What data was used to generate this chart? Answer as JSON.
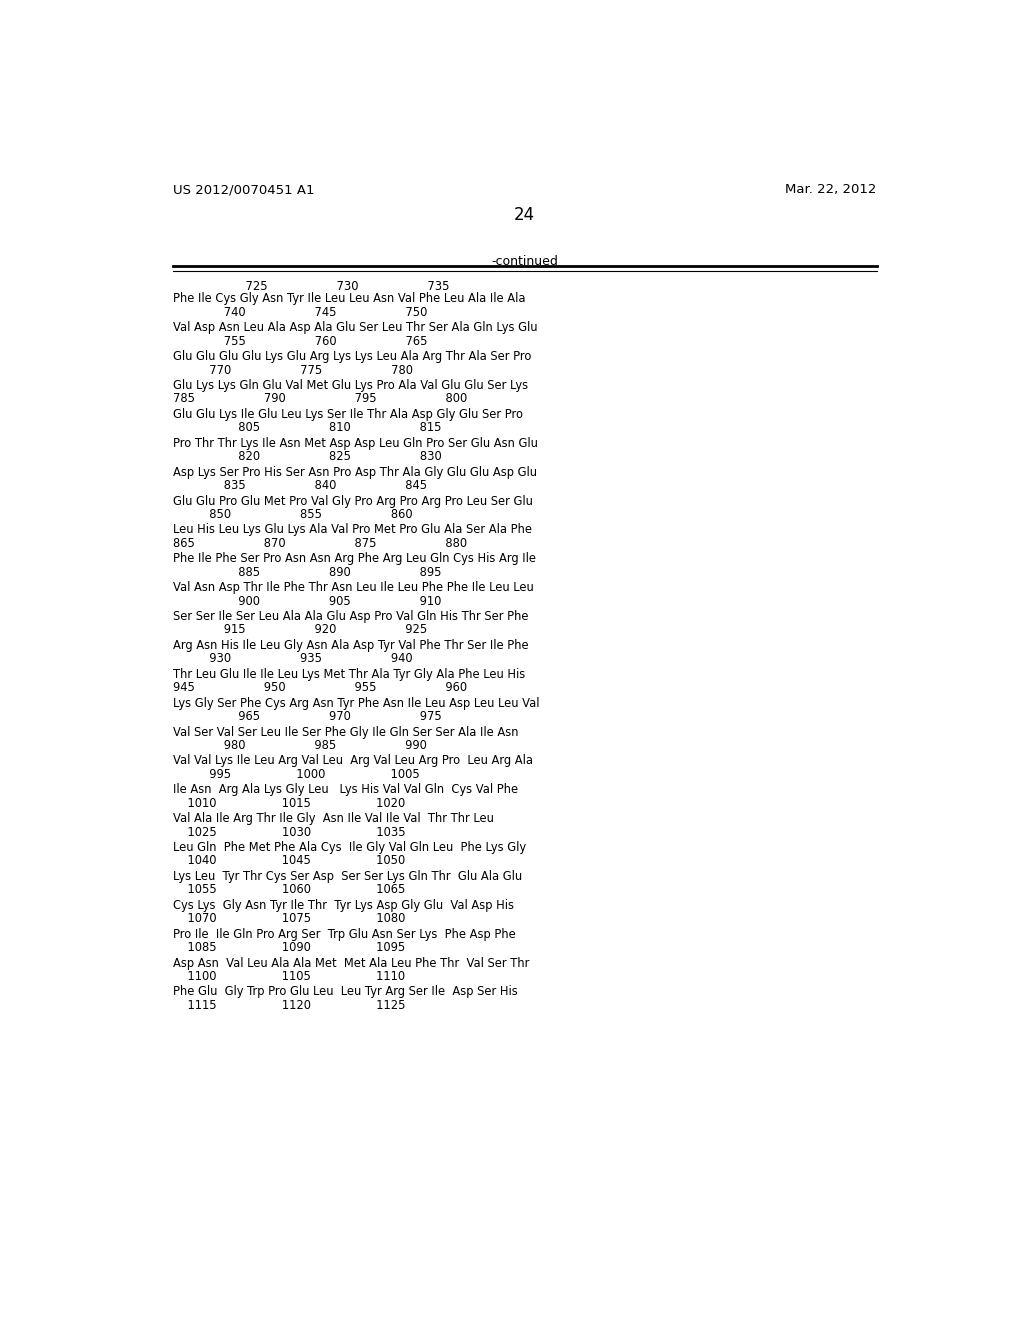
{
  "header_left": "US 2012/0070451 A1",
  "header_right": "Mar. 22, 2012",
  "page_number": "24",
  "continued_label": "-continued",
  "background_color": "#ffffff",
  "text_color": "#000000",
  "sequence_blocks": [
    {
      "aa": "Phe Ile Cys Gly Asn Tyr Ile Leu Leu Asn Val Phe Leu Ala Ile Ala",
      "num": "              740                   745                   750",
      "num_prefix": "                    725                   730                   735",
      "show_prefix": true
    },
    {
      "aa": "Val Asp Asn Leu Ala Asp Ala Glu Ser Leu Thr Ser Ala Gln Lys Glu",
      "num": "              755                   760                   765",
      "show_prefix": false
    },
    {
      "aa": "Glu Glu Glu Glu Lys Glu Arg Lys Lys Leu Ala Arg Thr Ala Ser Pro",
      "num": "          770                   775                   780",
      "show_prefix": false
    },
    {
      "aa": "Glu Lys Lys Gln Glu Val Met Glu Lys Pro Ala Val Glu Glu Ser Lys",
      "num": "785                   790                   795                   800",
      "show_prefix": false
    },
    {
      "aa": "Glu Glu Lys Ile Glu Leu Lys Ser Ile Thr Ala Asp Gly Glu Ser Pro",
      "num": "                  805                   810                   815",
      "show_prefix": false
    },
    {
      "aa": "Pro Thr Thr Lys Ile Asn Met Asp Asp Leu Gln Pro Ser Glu Asn Glu",
      "num": "                  820                   825                   830",
      "show_prefix": false
    },
    {
      "aa": "Asp Lys Ser Pro His Ser Asn Pro Asp Thr Ala Gly Glu Glu Asp Glu",
      "num": "              835                   840                   845",
      "show_prefix": false
    },
    {
      "aa": "Glu Glu Pro Glu Met Pro Val Gly Pro Arg Pro Arg Pro Leu Ser Glu",
      "num": "          850                   855                   860",
      "show_prefix": false
    },
    {
      "aa": "Leu His Leu Lys Glu Lys Ala Val Pro Met Pro Glu Ala Ser Ala Phe",
      "num": "865                   870                   875                   880",
      "show_prefix": false
    },
    {
      "aa": "Phe Ile Phe Ser Pro Asn Asn Arg Phe Arg Leu Gln Cys His Arg Ile",
      "num": "                  885                   890                   895",
      "show_prefix": false
    },
    {
      "aa": "Val Asn Asp Thr Ile Phe Thr Asn Leu Ile Leu Phe Phe Ile Leu Leu",
      "num": "                  900                   905                   910",
      "show_prefix": false
    },
    {
      "aa": "Ser Ser Ile Ser Leu Ala Ala Glu Asp Pro Val Gln His Thr Ser Phe",
      "num": "              915                   920                   925",
      "show_prefix": false
    },
    {
      "aa": "Arg Asn His Ile Leu Gly Asn Ala Asp Tyr Val Phe Thr Ser Ile Phe",
      "num": "          930                   935                   940",
      "show_prefix": false
    },
    {
      "aa": "Thr Leu Glu Ile Ile Leu Lys Met Thr Ala Tyr Gly Ala Phe Leu His",
      "num": "945                   950                   955                   960",
      "show_prefix": false
    },
    {
      "aa": "Lys Gly Ser Phe Cys Arg Asn Tyr Phe Asn Ile Leu Asp Leu Leu Val",
      "num": "                  965                   970                   975",
      "show_prefix": false
    },
    {
      "aa": "Val Ser Val Ser Leu Ile Ser Phe Gly Ile Gln Ser Ser Ala Ile Asn",
      "num": "              980                   985                   990",
      "show_prefix": false
    },
    {
      "aa": "Val Val Lys Ile Leu Arg Val Leu  Arg Val Leu Arg Pro  Leu Arg Ala",
      "num": "          995                  1000                  1005",
      "show_prefix": false
    },
    {
      "aa": "Ile Asn  Arg Ala Lys Gly Leu   Lys His Val Val Gln  Cys Val Phe",
      "num": "    1010                  1015                  1020",
      "show_prefix": false
    },
    {
      "aa": "Val Ala Ile Arg Thr Ile Gly  Asn Ile Val Ile Val  Thr Thr Leu",
      "num": "    1025                  1030                  1035",
      "show_prefix": false
    },
    {
      "aa": "Leu Gln  Phe Met Phe Ala Cys  Ile Gly Val Gln Leu  Phe Lys Gly",
      "num": "    1040                  1045                  1050",
      "show_prefix": false
    },
    {
      "aa": "Lys Leu  Tyr Thr Cys Ser Asp  Ser Ser Lys Gln Thr  Glu Ala Glu",
      "num": "    1055                  1060                  1065",
      "show_prefix": false
    },
    {
      "aa": "Cys Lys  Gly Asn Tyr Ile Thr  Tyr Lys Asp Gly Glu  Val Asp His",
      "num": "    1070                  1075                  1080",
      "show_prefix": false
    },
    {
      "aa": "Pro Ile  Ile Gln Pro Arg Ser  Trp Glu Asn Ser Lys  Phe Asp Phe",
      "num": "    1085                  1090                  1095",
      "show_prefix": false
    },
    {
      "aa": "Asp Asn  Val Leu Ala Ala Met  Met Ala Leu Phe Thr  Val Ser Thr",
      "num": "    1100                  1105                  1110",
      "show_prefix": false
    },
    {
      "aa": "Phe Glu  Gly Trp Pro Glu Leu  Leu Tyr Arg Ser Ile  Asp Ser His",
      "num": "    1115                  1120                  1125",
      "show_prefix": false
    }
  ]
}
